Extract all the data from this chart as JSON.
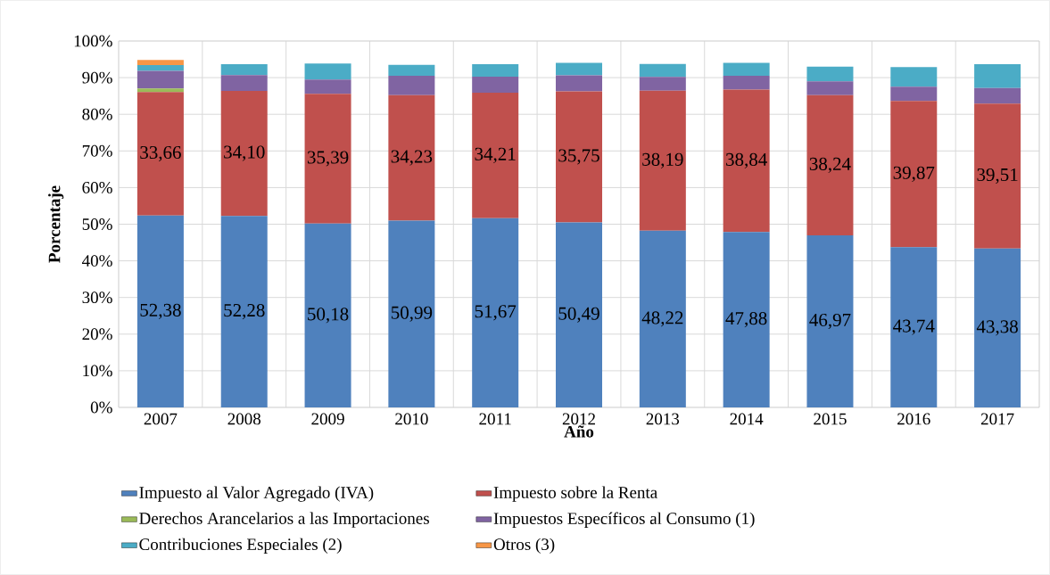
{
  "chart_data": {
    "type": "bar",
    "stacked": true,
    "xlabel": "Año",
    "ylabel": "Porcentaje",
    "categories": [
      "2007",
      "2008",
      "2009",
      "2010",
      "2011",
      "2012",
      "2013",
      "2014",
      "2015",
      "2016",
      "2017"
    ],
    "series": [
      {
        "name": "Impuesto al Valor Agregado (IVA)",
        "color": "#4f81bd",
        "values": [
          52.38,
          52.28,
          50.18,
          50.99,
          51.67,
          50.49,
          48.22,
          47.88,
          46.97,
          43.74,
          43.38
        ],
        "value_labels": [
          "52,38",
          "52,28",
          "50,18",
          "50,99",
          "51,67",
          "50,49",
          "48,22",
          "47,88",
          "46,97",
          "43,74",
          "43,38"
        ]
      },
      {
        "name": "Impuesto sobre la Renta",
        "color": "#c0504d",
        "values": [
          33.66,
          34.1,
          35.39,
          34.23,
          34.21,
          35.75,
          38.19,
          38.84,
          38.24,
          39.87,
          39.51
        ],
        "value_labels": [
          "33,66",
          "34,10",
          "35,39",
          "34,23",
          "34,21",
          "35,75",
          "38,19",
          "38,84",
          "38,24",
          "39,87",
          "39,51"
        ]
      },
      {
        "name": "Derechos Arancelarios a las Importaciones",
        "color": "#9bbb59",
        "values": [
          1.0,
          null,
          null,
          null,
          null,
          null,
          null,
          null,
          null,
          null,
          null
        ]
      },
      {
        "name": "Impuestos Específicos al Consumo (1)",
        "color": "#8064a2",
        "values": [
          4.8,
          4.3,
          3.9,
          5.3,
          4.4,
          4.4,
          3.8,
          3.8,
          3.8,
          3.9,
          4.3
        ]
      },
      {
        "name": "Contribuciones Especiales (2)",
        "color": "#4bacc6",
        "values": [
          1.6,
          3.0,
          4.4,
          3.0,
          3.4,
          3.4,
          3.5,
          3.5,
          4.0,
          5.4,
          6.5
        ]
      },
      {
        "name": "Otros (3)",
        "color": "#f79646",
        "values": [
          1.4,
          null,
          null,
          null,
          null,
          null,
          null,
          null,
          null,
          null,
          null
        ]
      }
    ],
    "ylim": [
      0,
      100
    ],
    "yticks": [
      {
        "value": 0,
        "label": "0%"
      },
      {
        "value": 10,
        "label": "10%"
      },
      {
        "value": 20,
        "label": "20%"
      },
      {
        "value": 30,
        "label": "30%"
      },
      {
        "value": 40,
        "label": "40%"
      },
      {
        "value": 50,
        "label": "50%"
      },
      {
        "value": 60,
        "label": "60%"
      },
      {
        "value": 70,
        "label": "70%"
      },
      {
        "value": 80,
        "label": "80%"
      },
      {
        "value": 90,
        "label": "90%"
      },
      {
        "value": 100,
        "label": "100%"
      }
    ],
    "grid": true,
    "legend": "bottom"
  }
}
